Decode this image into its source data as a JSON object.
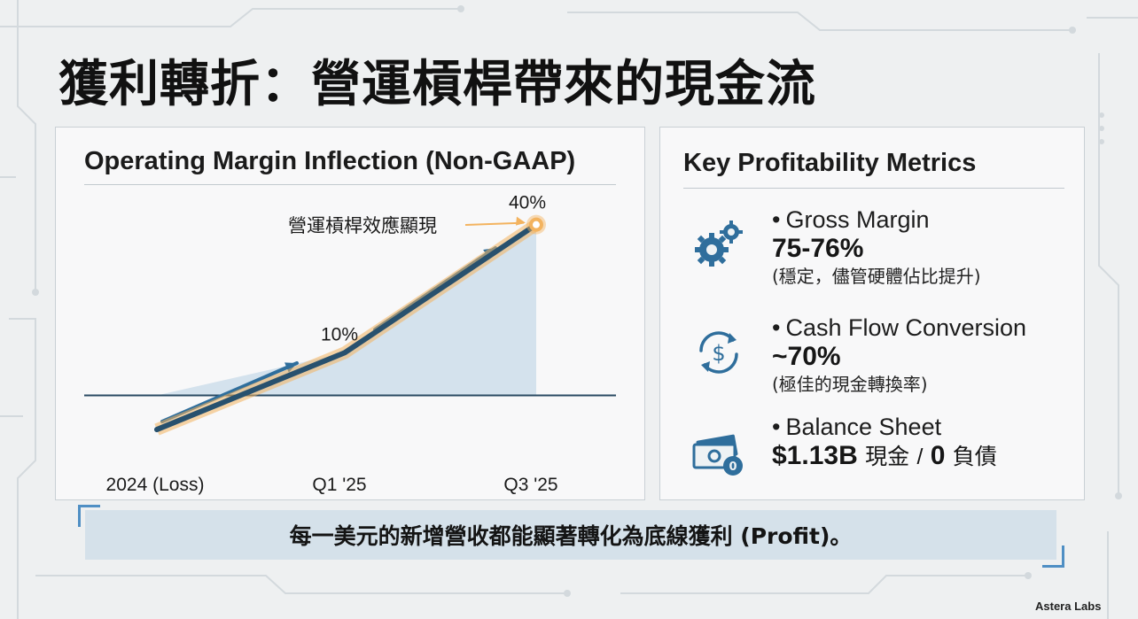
{
  "slide": {
    "title": "獲利轉折：營運槓桿帶來的現金流",
    "brand": "Astera Labs"
  },
  "colors": {
    "line": "#28516e",
    "glow": "#f3b35f",
    "arrow": "#2f6e9c",
    "area": "#c8dbe8",
    "accent": "#4f8fc4"
  },
  "chart_data": {
    "type": "line",
    "title": "Operating Margin Inflection (Non-GAAP)",
    "categories": [
      "2024 (Loss)",
      "Q1 '25",
      "Q3 '25"
    ],
    "point_labels": [
      "",
      "10%",
      "40%"
    ],
    "highlight_index": 2,
    "annotation": "營運槓桿效應顯現",
    "baseline": 0,
    "values": [
      -8,
      10,
      40
    ],
    "ylim": [
      -14,
      42
    ]
  },
  "metrics": {
    "title": "Key Profitability Metrics",
    "items": [
      {
        "icon": "gears-icon",
        "label": "Gross Margin",
        "value": "75-76%",
        "note": "(穩定，儘管硬體佔比提升)"
      },
      {
        "icon": "cash-flow-dollar-icon",
        "label": "Cash Flow Conversion",
        "value": "~70%",
        "note": "(極佳的現金轉換率)"
      },
      {
        "icon": "money-bills-coin-icon",
        "label": "Balance Sheet",
        "value_cash": "$1.13B",
        "cash_label": "現金",
        "sep": "/",
        "value_debt": "0",
        "debt_label": "負債"
      }
    ]
  },
  "banner": {
    "text": "每一美元的新增營收都能顯著轉化為底線獲利 (Profit)。"
  }
}
